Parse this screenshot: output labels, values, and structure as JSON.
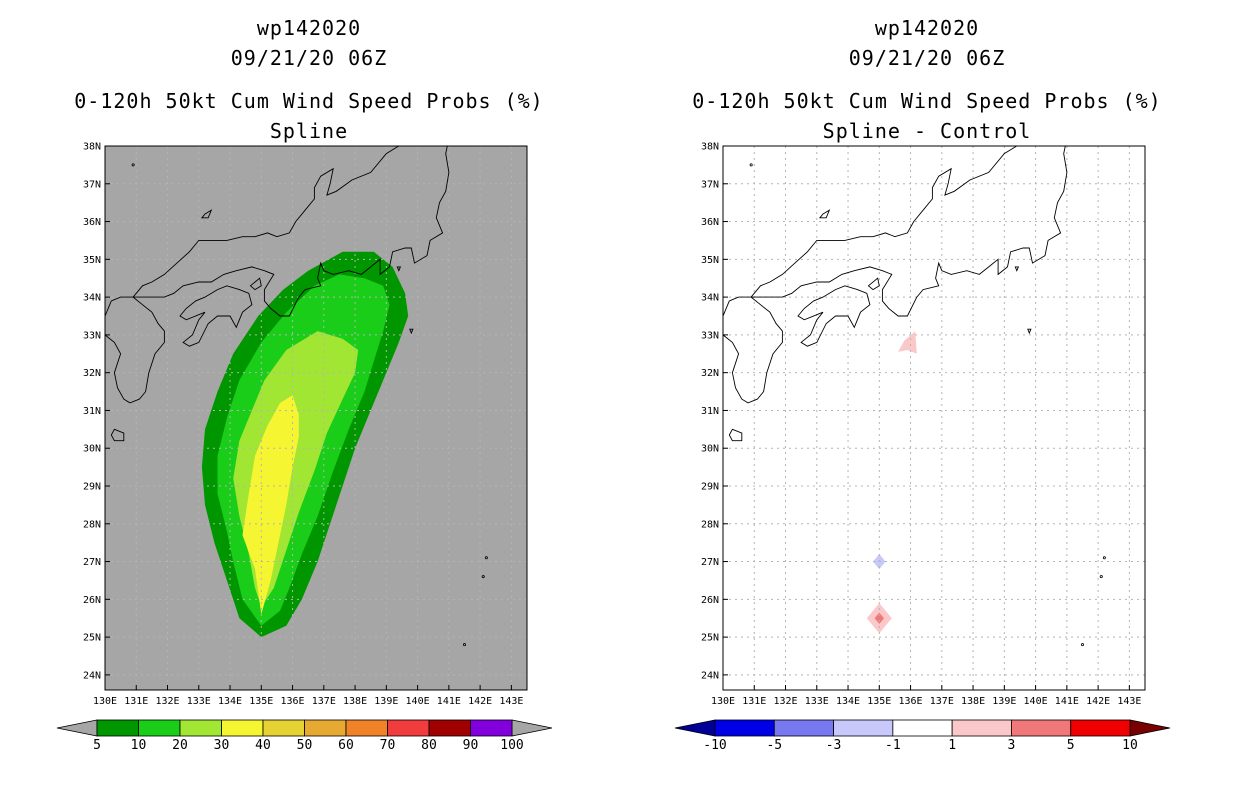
{
  "left": {
    "title_storm": "wp142020",
    "title_time": "09/21/20 06Z",
    "title_product": "0-120h 50kt Cum Wind Speed Probs (%)",
    "title_sub": "Spline",
    "colorbar": {
      "labels": [
        "5",
        "10",
        "20",
        "30",
        "40",
        "50",
        "60",
        "70",
        "80",
        "90",
        "100"
      ],
      "colors": [
        "#009600",
        "#19cd19",
        "#a0e632",
        "#f5f532",
        "#e6d232",
        "#e6aa32",
        "#f08228",
        "#f03c3c",
        "#a00000",
        "#8200dc"
      ],
      "under_color": "#a6a6a6",
      "over_color": "#a6a6a6"
    }
  },
  "right": {
    "title_storm": "wp142020",
    "title_time": "09/21/20 06Z",
    "title_product": "0-120h 50kt Cum Wind Speed Probs (%)",
    "title_sub": "Spline - Control",
    "colorbar": {
      "labels": [
        "-10",
        "-5",
        "-3",
        "-1",
        "1",
        "3",
        "5",
        "10"
      ],
      "colors": [
        "#0000e6",
        "#7878f0",
        "#c8c8fa",
        "#ffffff",
        "#fac8c8",
        "#f07878",
        "#f00000"
      ],
      "under_color": "#000096",
      "over_color": "#780000"
    }
  },
  "map": {
    "lon_labels": [
      "130E",
      "131E",
      "132E",
      "133E",
      "134E",
      "135E",
      "136E",
      "137E",
      "138E",
      "139E",
      "140E",
      "141E",
      "142E",
      "143E"
    ],
    "lat_labels": [
      "38N",
      "37N",
      "36N",
      "35N",
      "34N",
      "33N",
      "32N",
      "31N",
      "30N",
      "29N",
      "28N",
      "27N",
      "26N",
      "25N",
      "24N"
    ],
    "lon_min": 130,
    "lon_max": 143.5,
    "lat_min": 23.6,
    "lat_max": 38,
    "ocean_color_left": "#a6a6a6",
    "ocean_color_right": "#ffffff",
    "grid_color": "#b4b4b4"
  }
}
